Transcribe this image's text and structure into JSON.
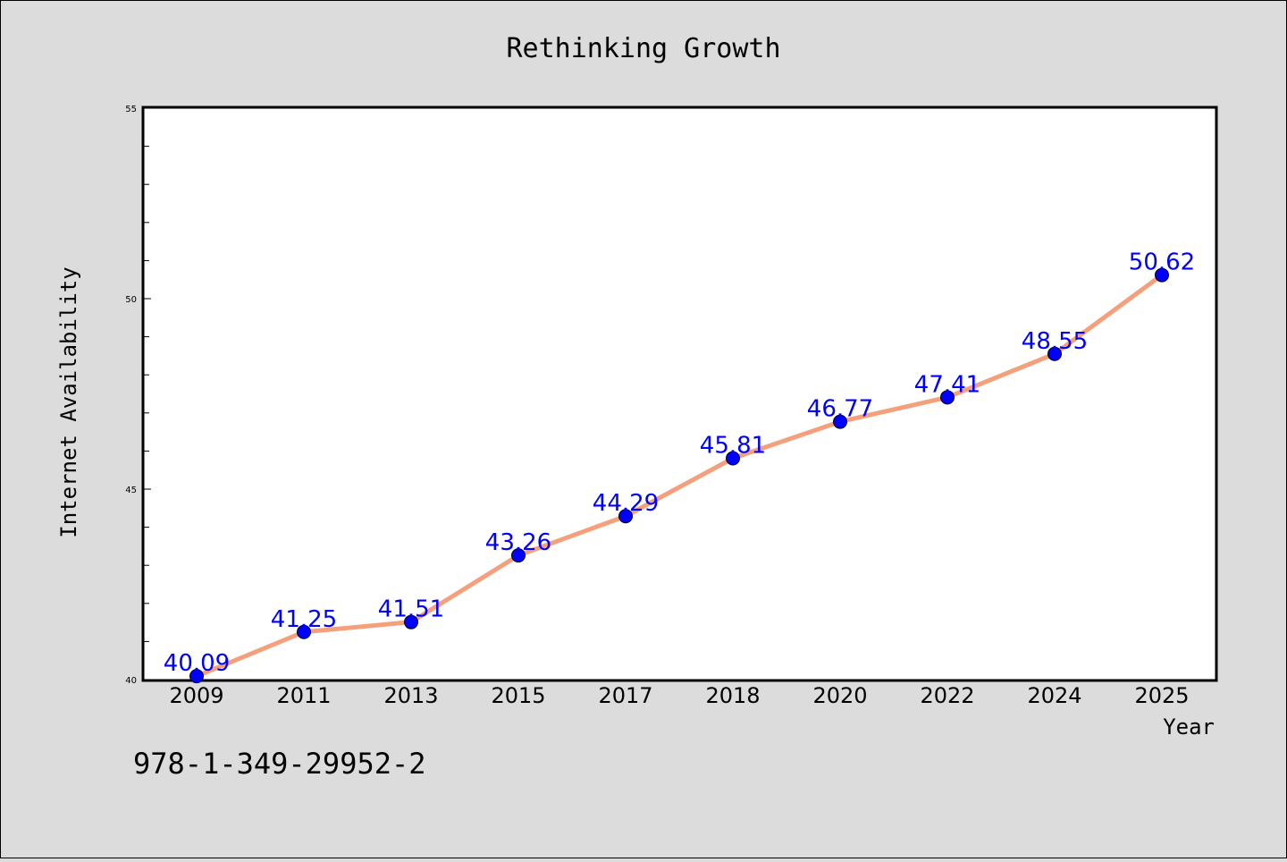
{
  "chart_data": {
    "type": "line",
    "title": "Rethinking Growth",
    "xlabel": "Year",
    "ylabel": "Internet Availability",
    "categories": [
      "2009",
      "2011",
      "2013",
      "2015",
      "2017",
      "2018",
      "2020",
      "2022",
      "2024",
      "2025"
    ],
    "values": [
      40.09,
      41.25,
      41.51,
      43.26,
      44.29,
      45.81,
      46.77,
      47.41,
      48.55,
      50.62
    ],
    "data_labels": [
      "40.09",
      "41.25",
      "41.51",
      "43.26",
      "44.29",
      "45.81",
      "46.77",
      "47.41",
      "48.55",
      "50.62"
    ],
    "ylim": [
      40,
      55
    ],
    "yticks": [
      "40",
      "45",
      "50",
      "55"
    ],
    "grid": false,
    "line_color": "#f4a07c",
    "marker_color": "#0000ff",
    "label_color": "#0000ff",
    "background_color": "#dcdcdc",
    "plot_background_color": "#ffffff"
  },
  "footer": {
    "isbn": "978-1-349-29952-2"
  }
}
